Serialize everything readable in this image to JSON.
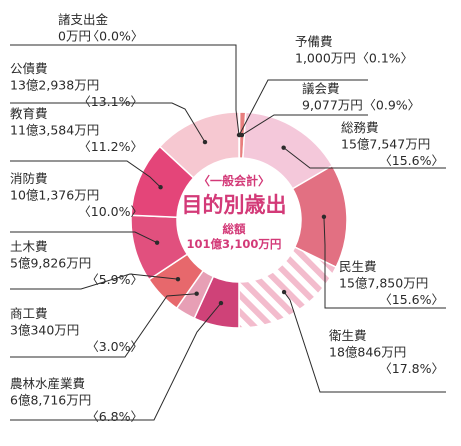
{
  "chart_data": {
    "type": "pie",
    "variant": "donut",
    "title": "目的別歳出",
    "subtitle": "〈一般会計〉",
    "total_label": "総額",
    "total_value": "101億3,100万円",
    "categories": [
      "予備費",
      "議会費",
      "総務費",
      "民生費",
      "衛生費",
      "農林水産業費",
      "商工費",
      "土木費",
      "消防費",
      "教育費",
      "公債費",
      "諸支出金"
    ],
    "values": [
      0.1,
      0.9,
      15.6,
      15.6,
      17.8,
      6.8,
      3.0,
      5.9,
      10.0,
      11.2,
      13.1,
      0.0
    ],
    "amounts": [
      "1,000万円",
      "9,077万円",
      "15億7,547万円",
      "15億7,850万円",
      "18億846万円",
      "6億8,716万円",
      "3億340万円",
      "5億9,826万円",
      "10億1,376万円",
      "11億3,584万円",
      "13億2,938万円",
      "0万円"
    ],
    "percent_labels": [
      "〈0.1%〉",
      "〈0.9%〉",
      "〈15.6%〉",
      "〈15.6%〉",
      "〈17.8%〉",
      "〈6.8%〉",
      "〈3.0%〉",
      "〈5.9%〉",
      "〈10.0%〉",
      "〈11.2%〉",
      "〈13.1%〉",
      "〈0.0%〉"
    ],
    "colors": [
      "#f0a0b0",
      "#e87e7e",
      "#f4c8da",
      "#e27082",
      "#f3bccd",
      "#cf4278",
      "#e79fb5",
      "#e7686c",
      "#e1507e",
      "#e44579",
      "#f6c8d1",
      "#f4c4cf"
    ]
  }
}
